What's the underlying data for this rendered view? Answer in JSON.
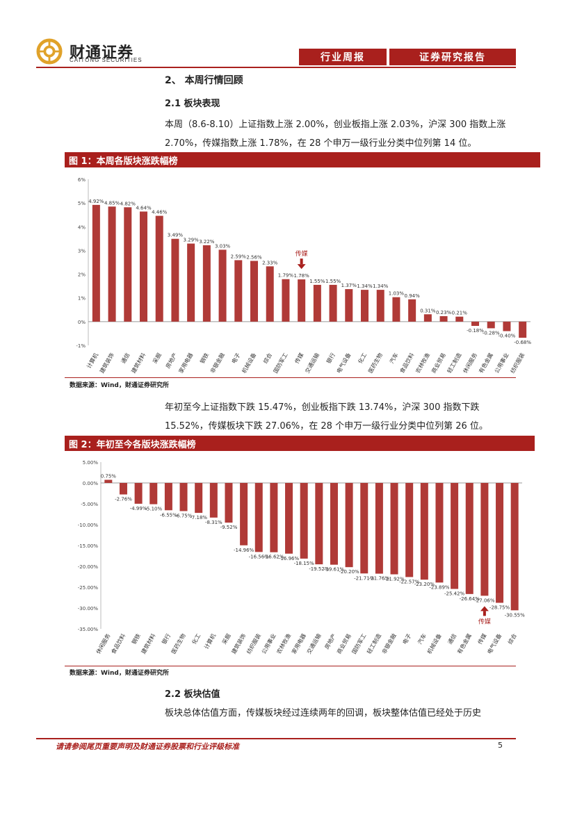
{
  "header": {
    "logo_cn": "财通证券",
    "logo_en": "CAITONG SECURITIES",
    "tag1": "行业周报",
    "tag2": "证券研究报告"
  },
  "section2_title": "2、 本周行情回顾",
  "section21_title": "2.1  板块表现",
  "para1": "本周（8.6-8.10）上证指数上涨 2.00%，创业板指上涨 2.03%，沪深 300 指数上涨 2.70%，传媒指数上涨 1.78%，在 28 个申万一级行业分类中位列第 14 位。",
  "fig1_title": "图 1：本周各版块涨跌幅榜",
  "source1": "数据来源：Wind，财通证券研究所",
  "para2": "年初至今上证指数下跌 15.47%，创业板指下跌 13.74%，沪深 300 指数下跌 15.52%，传媒板块下跌 27.06%，在 28 个申万一级行业分类中位列第 26 位。",
  "fig2_title": "图 2：年初至今各版块涨跌幅榜",
  "source2": "数据来源：Wind，财通证券研究所",
  "section22_title": "2.2  板块估值",
  "para3": "板块总体估值方面，传媒板块经过连续两年的回调，板块整体估值已经处于历史",
  "footer_text": "请请参阅尾页重要声明及财通证券股票和行业评级标准",
  "page_no": "5",
  "colors": {
    "accent": "#a9201d",
    "bar": "#b03a37"
  },
  "chart_data": [
    {
      "type": "bar",
      "title": "图 1：本周各版块涨跌幅榜",
      "categories": [
        "计算机",
        "建筑装饰",
        "通信",
        "建筑材料",
        "采掘",
        "房地产",
        "家用电器",
        "钢铁",
        "非银金融",
        "电子",
        "机械设备",
        "综合",
        "国防军工",
        "传媒",
        "交通运输",
        "银行",
        "电气设备",
        "化工",
        "医药生物",
        "汽车",
        "食品饮料",
        "农林牧渔",
        "商业贸易",
        "轻工制造",
        "休闲服务",
        "有色金属",
        "公用事业",
        "纺织服装"
      ],
      "values": [
        4.92,
        4.85,
        4.82,
        4.64,
        4.46,
        3.49,
        3.29,
        3.22,
        3.03,
        2.59,
        2.56,
        2.33,
        1.79,
        1.78,
        1.55,
        1.55,
        1.37,
        1.34,
        1.34,
        1.03,
        0.94,
        0.31,
        0.23,
        0.21,
        -0.18,
        -0.28,
        -0.4,
        -0.68
      ],
      "data_labels": [
        "4.92%",
        "4.85%",
        "4.82%",
        "4.64%",
        "4.46%",
        "3.49%",
        "3.29%",
        "3.22%",
        "3.03%",
        "2.59%",
        "2.56%",
        "2.33%",
        "1.79%",
        "1.78%",
        "1.55%",
        "1.55%",
        "1.37%",
        "1.34%",
        "1.34%",
        "1.03%",
        "0.94%",
        "0.31%",
        "0.23%",
        "0.21%",
        "-0.18%",
        "-0.28%",
        "-0.40%",
        "-0.68%"
      ],
      "ylim": [
        -1,
        6
      ],
      "yticks": [
        -1,
        0,
        1,
        2,
        3,
        4,
        5,
        6
      ],
      "ytick_labels": [
        "-1%",
        "0%",
        "1%",
        "2%",
        "3%",
        "4%",
        "5%",
        "6%"
      ],
      "annotation": {
        "label": "传媒",
        "index": 13
      }
    },
    {
      "type": "bar",
      "title": "图 2：年初至今各版块涨跌幅榜",
      "categories": [
        "休闲服务",
        "食品饮料",
        "钢铁",
        "建筑材料",
        "银行",
        "医药生物",
        "化工",
        "计算机",
        "采掘",
        "建筑装饰",
        "纺织服装",
        "公用事业",
        "农林牧渔",
        "家用电器",
        "交通运输",
        "房地产",
        "商业贸易",
        "国防军工",
        "轻工制造",
        "非银金融",
        "电子",
        "汽车",
        "机械设备",
        "通信",
        "有色金属",
        "传媒",
        "电气设备",
        "综合"
      ],
      "values": [
        0.75,
        -2.76,
        -4.99,
        -5.1,
        -6.55,
        -6.75,
        -7.18,
        -8.31,
        -9.52,
        -14.96,
        -16.56,
        -16.62,
        -16.96,
        -18.15,
        -19.52,
        -19.61,
        -20.2,
        -21.71,
        -21.76,
        -21.92,
        -22.57,
        -23.2,
        -23.89,
        -25.42,
        -26.64,
        -27.06,
        -28.75,
        -30.55
      ],
      "data_labels": [
        "0.75%",
        "-2.76%",
        "-4.99%",
        "-5.10%",
        "-6.55%",
        "-6.75%",
        "-7.18%",
        "-8.31%",
        "-9.52%",
        "-14.96%",
        "-16.56%",
        "-16.62%",
        "-16.96%",
        "-18.15%",
        "-19.52%",
        "-19.61%",
        "-20.20%",
        "-21.71%",
        "-21.76%",
        "-21.92%",
        "-22.57%",
        "-23.20%",
        "-23.89%",
        "-25.42%",
        "-26.64%",
        "-27.06%",
        "-28.75%",
        "-30.55%"
      ],
      "ylim": [
        -35,
        5
      ],
      "yticks": [
        5,
        0,
        -5,
        -10,
        -15,
        -20,
        -25,
        -30,
        -35
      ],
      "ytick_labels": [
        "5.00%",
        "0.00%",
        "-5.00%",
        "-10.00%",
        "-15.00%",
        "-20.00%",
        "-25.00%",
        "-30.00%",
        "-35.00%"
      ],
      "annotation": {
        "label": "传媒",
        "index": 25
      }
    }
  ]
}
